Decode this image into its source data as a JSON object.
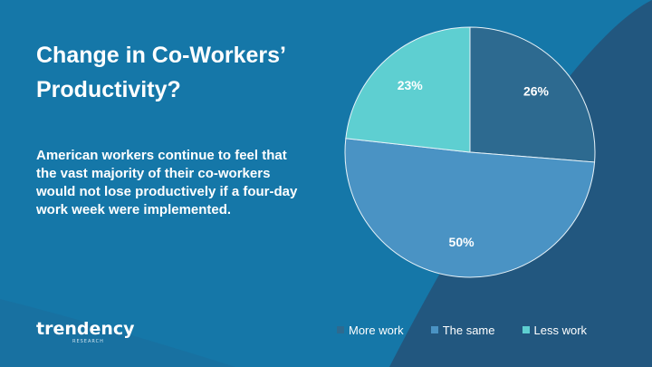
{
  "slide": {
    "title": "Change in Co-Workers’ Productivity?",
    "body": "American workers continue to feel that the vast majority of their co-workers would not lose productively if a four-day work week were implemented.",
    "logo_text": "trendency",
    "logo_subtext": "RESEARCH"
  },
  "colors": {
    "background": "#1577a8",
    "background_dark": "#24537a",
    "more_work": "#2d6a90",
    "the_same": "#4a93c4",
    "less_work": "#5ecfd1"
  },
  "chart_data": {
    "type": "pie",
    "categories": [
      "More work",
      "The same",
      "Less work"
    ],
    "values": [
      26,
      50,
      23
    ],
    "labels": [
      "26%",
      "50%",
      "23%"
    ],
    "colors": [
      "#2d6a90",
      "#4a93c4",
      "#5ecfd1"
    ],
    "title": "",
    "legend_position": "bottom"
  },
  "legend": {
    "items": [
      {
        "label": "More work",
        "color": "#2d6a90"
      },
      {
        "label": "The same",
        "color": "#4a93c4"
      },
      {
        "label": "Less work",
        "color": "#5ecfd1"
      }
    ]
  }
}
